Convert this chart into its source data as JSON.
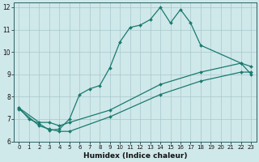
{
  "title": "",
  "xlabel": "Humidex (Indice chaleur)",
  "ylabel": "",
  "xlim": [
    -0.5,
    23.5
  ],
  "ylim": [
    6,
    12.2
  ],
  "yticks": [
    6,
    7,
    8,
    9,
    10,
    11,
    12
  ],
  "xticks": [
    0,
    1,
    2,
    3,
    4,
    5,
    6,
    7,
    8,
    9,
    10,
    11,
    12,
    13,
    14,
    15,
    16,
    17,
    18,
    19,
    20,
    21,
    22,
    23
  ],
  "background_color": "#cfe8ea",
  "grid_color": "#a8c8cc",
  "line_color": "#1a7a6e",
  "lines": [
    {
      "x": [
        0,
        1,
        2,
        3,
        4,
        5,
        6,
        7,
        8,
        9,
        10,
        11,
        12,
        13,
        14,
        15,
        16,
        17,
        18,
        22,
        23
      ],
      "y": [
        7.5,
        7.0,
        6.8,
        6.5,
        6.55,
        7.0,
        8.1,
        8.35,
        8.5,
        9.3,
        10.45,
        11.1,
        11.2,
        11.45,
        12.0,
        11.3,
        11.9,
        11.3,
        10.3,
        9.5,
        9.0
      ],
      "marker": true
    },
    {
      "x": [
        0,
        2,
        3,
        4,
        5,
        9,
        14,
        18,
        22,
        23
      ],
      "y": [
        7.5,
        6.85,
        6.85,
        6.7,
        6.85,
        7.4,
        8.55,
        9.1,
        9.5,
        9.35
      ],
      "marker": true
    },
    {
      "x": [
        0,
        2,
        3,
        4,
        5,
        9,
        14,
        18,
        22,
        23
      ],
      "y": [
        7.45,
        6.7,
        6.55,
        6.45,
        6.45,
        7.1,
        8.1,
        8.7,
        9.1,
        9.1
      ],
      "marker": true
    }
  ]
}
